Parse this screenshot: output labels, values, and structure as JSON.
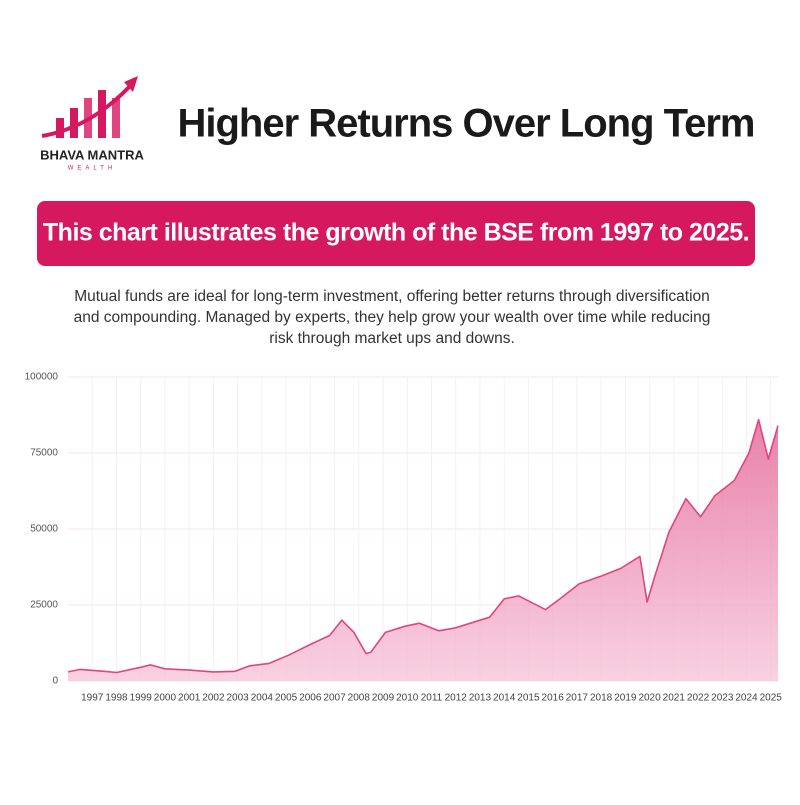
{
  "header": {
    "logo_name": "BHAVA MANTRA",
    "logo_sub": "WEALTH",
    "title": "Higher Returns Over Long Term"
  },
  "banner": "This chart illustrates the growth of the BSE from 1997 to 2025.",
  "description": [
    "Mutual funds are ideal for long-term investment, offering better returns through diversification",
    "and compounding. Managed by experts, they help grow your wealth over time while reducing",
    "risk through market ups and downs."
  ],
  "chart_data": {
    "type": "area",
    "x": [
      1996.0,
      1996.5,
      1997.5,
      1998.0,
      1999.0,
      1999.4,
      2000.0,
      2001.0,
      2002.0,
      2002.9,
      2003.5,
      2004.3,
      2005.1,
      2006.0,
      2006.8,
      2007.3,
      2007.8,
      2008.3,
      2008.5,
      2009.1,
      2009.9,
      2010.5,
      2011.3,
      2012.0,
      2012.6,
      2013.4,
      2014.0,
      2014.6,
      2015.7,
      2016.3,
      2017.1,
      2018.0,
      2018.8,
      2019.6,
      2019.9,
      2020.2,
      2020.8,
      2021.5,
      2022.1,
      2022.7,
      2023.5,
      2024.1,
      2024.5,
      2024.9,
      2025.3
    ],
    "values": [
      3000,
      3800,
      3200,
      2800,
      4500,
      5300,
      4000,
      3600,
      3000,
      3200,
      5000,
      5800,
      8500,
      12000,
      15000,
      20000,
      16000,
      9000,
      9500,
      16000,
      18000,
      19000,
      16500,
      17500,
      19000,
      21000,
      27000,
      28000,
      23500,
      27000,
      32000,
      34500,
      37000,
      41000,
      26000,
      34000,
      49000,
      60000,
      54000,
      61000,
      66000,
      75000,
      86000,
      73000,
      84000
    ],
    "color": "#e0457f",
    "xlim": [
      1996.0,
      2025.3
    ],
    "xticks": [
      1997,
      1998,
      1999,
      2000,
      2001,
      2002,
      2003,
      2004,
      2005,
      2006,
      2007,
      2008,
      2009,
      2010,
      2011,
      2012,
      2013,
      2014,
      2015,
      2016,
      2017,
      2018,
      2019,
      2020,
      2021,
      2022,
      2023,
      2024,
      2025
    ],
    "ylim": [
      0,
      100000
    ],
    "yticks": [
      0,
      25000,
      50000,
      75000,
      100000
    ],
    "grid": true
  }
}
